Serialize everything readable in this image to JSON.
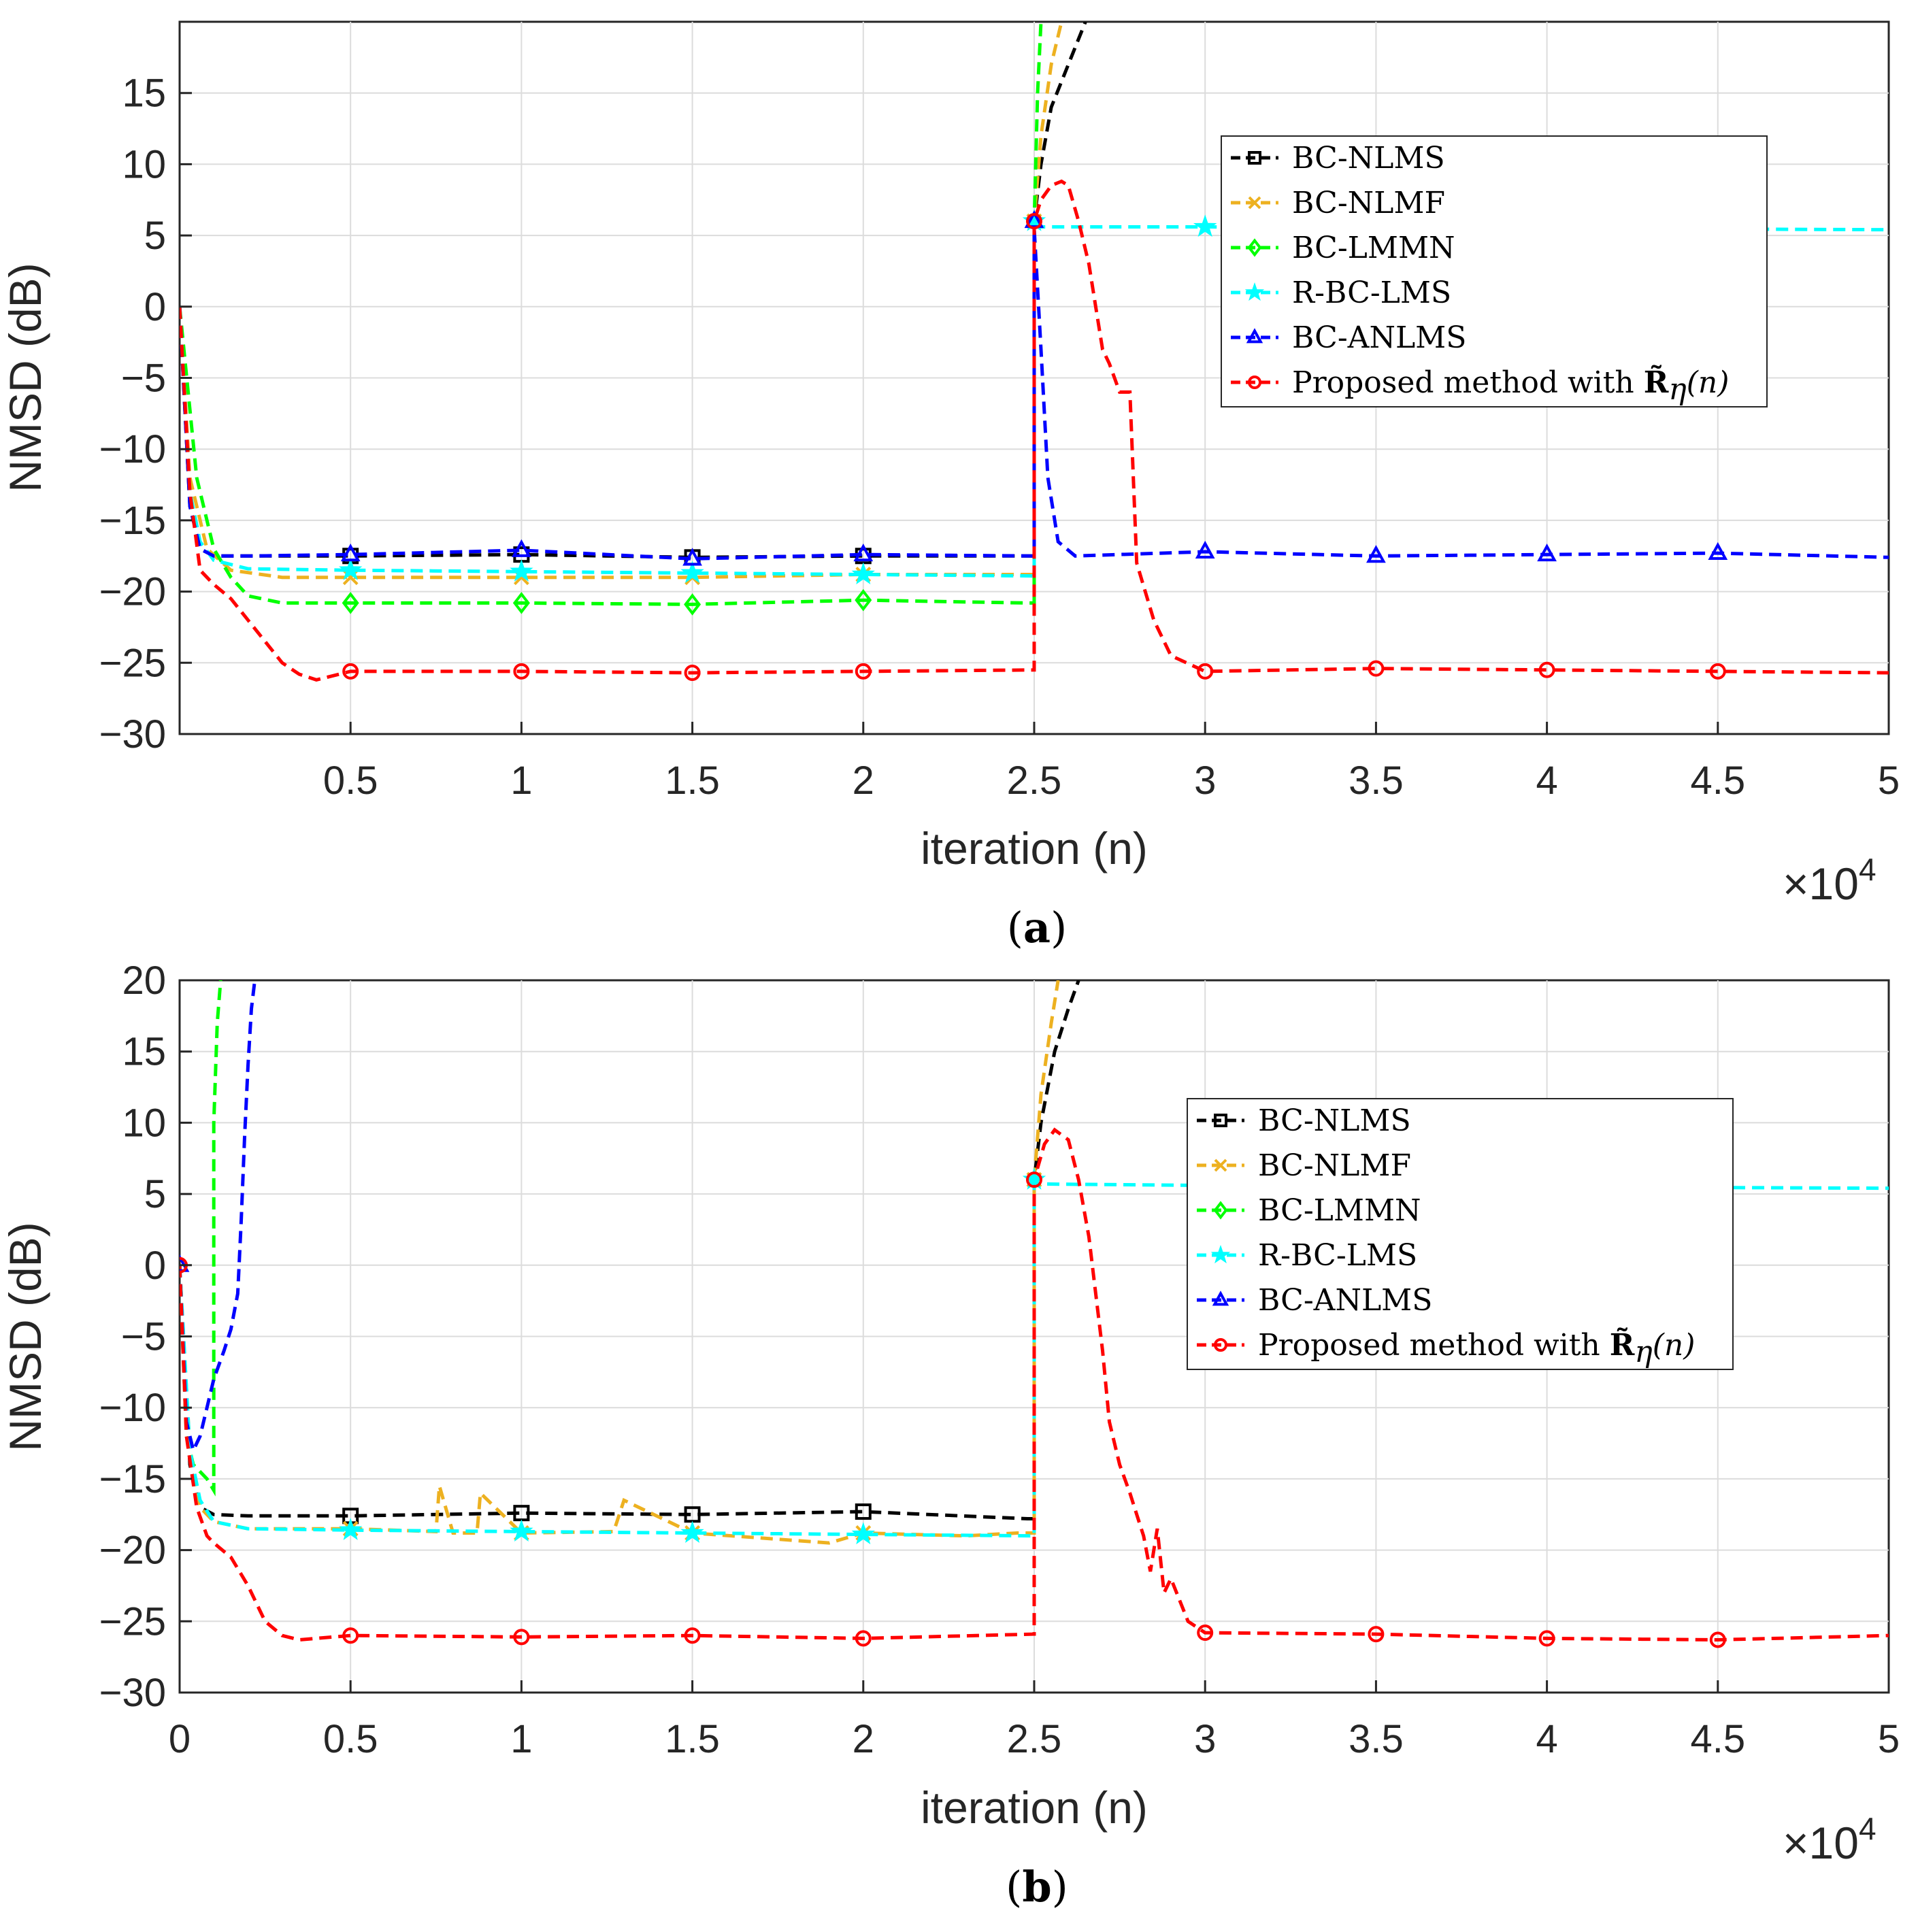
{
  "chart_data": [
    {
      "id": "a",
      "type": "line",
      "caption_letter": "a",
      "xlabel": "iteration (n)",
      "ylabel": "NMSD (dB)",
      "x_multiplier": "×10",
      "x_multiplier_exp": "4",
      "xlim": [
        0,
        5
      ],
      "ylim": [
        -30,
        20
      ],
      "xticks": [
        0.5,
        1,
        1.5,
        2,
        2.5,
        3,
        3.5,
        4,
        4.5,
        5
      ],
      "xtick_labels": [
        "0.5",
        "1",
        "1.5",
        "2",
        "2.5",
        "3",
        "3.5",
        "4",
        "4.5",
        "5"
      ],
      "yticks": [
        -30,
        -25,
        -20,
        -15,
        -10,
        -5,
        0,
        5,
        10,
        15
      ],
      "ytick_labels": [
        "−30",
        "−25",
        "−20",
        "−15",
        "−10",
        "−5",
        "0",
        "5",
        "10",
        "15"
      ],
      "grid": true,
      "legend_position": "top-right",
      "series": [
        {
          "name": "BC-NLMS",
          "color": "#000000",
          "marker": "square",
          "x": [
            0,
            0.03,
            0.06,
            0.1,
            0.2,
            0.5,
            1,
            1.5,
            2,
            2.45,
            2.5,
            2.5,
            2.52,
            2.55,
            2.6,
            2.65
          ],
          "y": [
            0,
            -14,
            -17,
            -17.5,
            -17.5,
            -17.5,
            -17.4,
            -17.6,
            -17.5,
            -17.5,
            -17.5,
            6,
            10,
            14,
            17,
            20
          ],
          "markers_x": [
            0.5,
            1,
            1.5,
            2
          ],
          "markers_y": [
            -17.5,
            -17.4,
            -17.6,
            -17.5
          ]
        },
        {
          "name": "BC-NLMF",
          "color": "#EDB120",
          "marker": "x",
          "x": [
            0,
            0.03,
            0.08,
            0.15,
            0.3,
            0.5,
            1,
            1.5,
            2,
            2.48,
            2.5,
            2.5,
            2.52,
            2.55,
            2.58
          ],
          "y": [
            0,
            -12,
            -17,
            -18.5,
            -19,
            -19,
            -19,
            -19,
            -18.8,
            -18.8,
            -18.8,
            6,
            12,
            17,
            20
          ],
          "markers_x": [
            0.5,
            1,
            1.5,
            2
          ],
          "markers_y": [
            -19,
            -19,
            -19,
            -18.8
          ]
        },
        {
          "name": "BC-LMMN",
          "color": "#00FF00",
          "marker": "diamond",
          "x": [
            0,
            0.05,
            0.1,
            0.15,
            0.2,
            0.3,
            0.5,
            1,
            1.5,
            2,
            2.48,
            2.5,
            2.5,
            2.51,
            2.52
          ],
          "y": [
            0,
            -12,
            -17,
            -19,
            -20.3,
            -20.8,
            -20.8,
            -20.8,
            -20.9,
            -20.6,
            -20.8,
            -20.8,
            6,
            15,
            20
          ],
          "markers_x": [
            0.5,
            1,
            1.5,
            2
          ],
          "markers_y": [
            -20.8,
            -20.8,
            -20.9,
            -20.6
          ]
        },
        {
          "name": "R-BC-LMS",
          "color": "#00FFFF",
          "marker": "star",
          "x": [
            0,
            0.03,
            0.06,
            0.1,
            0.2,
            0.5,
            1,
            1.5,
            2,
            2.5,
            2.5,
            3,
            4,
            5
          ],
          "y": [
            0,
            -13,
            -16.5,
            -17.8,
            -18.4,
            -18.5,
            -18.6,
            -18.7,
            -18.8,
            -18.9,
            5.6,
            5.6,
            5.5,
            5.4
          ],
          "markers_x": [
            0.5,
            1,
            1.5,
            2,
            3
          ],
          "markers_y": [
            -18.5,
            -18.6,
            -18.7,
            -18.8,
            5.6
          ]
        },
        {
          "name": "BC-ANLMS",
          "color": "#0000FF",
          "marker": "triangle",
          "x": [
            0,
            0.03,
            0.06,
            0.1,
            0.2,
            0.5,
            1,
            1.5,
            2,
            2.5,
            2.5,
            2.52,
            2.54,
            2.57,
            2.62,
            3,
            3.5,
            4,
            4.5,
            5
          ],
          "y": [
            0,
            -14,
            -17,
            -17.5,
            -17.5,
            -17.4,
            -17.1,
            -17.7,
            -17.4,
            -17.5,
            5.5,
            -3,
            -12,
            -16.5,
            -17.5,
            -17.2,
            -17.5,
            -17.4,
            -17.3,
            -17.6
          ],
          "markers_x": [
            0.5,
            1,
            1.5,
            2,
            3,
            3.5,
            4,
            4.5
          ],
          "markers_y": [
            -17.4,
            -17.1,
            -17.7,
            -17.4,
            -17.2,
            -17.5,
            -17.4,
            -17.3
          ]
        },
        {
          "name": "Proposed method with ",
          "name_math": "R̃",
          "name_sub": "η",
          "name_arg": "(n)",
          "color": "#FF0000",
          "marker": "circle",
          "x": [
            0,
            0.03,
            0.06,
            0.1,
            0.15,
            0.2,
            0.25,
            0.3,
            0.35,
            0.4,
            0.5,
            1,
            1.5,
            2,
            2.5,
            2.5,
            2.52,
            2.55,
            2.58,
            2.6,
            2.63,
            2.66,
            2.68,
            2.7,
            2.72,
            2.75,
            2.78,
            2.8,
            2.85,
            2.9,
            3,
            3.5,
            4,
            4.5,
            5
          ],
          "y": [
            0,
            -13,
            -18.5,
            -19.5,
            -20.5,
            -22,
            -23.5,
            -25,
            -25.8,
            -26.2,
            -25.6,
            -25.6,
            -25.7,
            -25.6,
            -25.5,
            6,
            7.5,
            8.5,
            8.8,
            8.5,
            6,
            3,
            0,
            -3,
            -4,
            -6,
            -6,
            -18,
            -22,
            -24.5,
            -25.6,
            -25.4,
            -25.5,
            -25.6,
            -25.7
          ],
          "markers_x": [
            0.5,
            1,
            1.5,
            2,
            3,
            3.5,
            4,
            4.5
          ],
          "markers_y": [
            -25.6,
            -25.6,
            -25.7,
            -25.6,
            -25.6,
            -25.4,
            -25.5,
            -25.6
          ]
        }
      ],
      "extra_markers": [
        {
          "x": 2.5,
          "y": 6,
          "series": [
            1,
            3,
            4,
            5
          ]
        }
      ]
    },
    {
      "id": "b",
      "type": "line",
      "caption_letter": "b",
      "xlabel": "iteration (n)",
      "ylabel": "NMSD (dB)",
      "x_multiplier": "×10",
      "x_multiplier_exp": "4",
      "xlim": [
        0,
        5
      ],
      "ylim": [
        -30,
        20
      ],
      "xticks": [
        0,
        0.5,
        1,
        1.5,
        2,
        2.5,
        3,
        3.5,
        4,
        4.5,
        5
      ],
      "xtick_labels": [
        "0",
        "0.5",
        "1",
        "1.5",
        "2",
        "2.5",
        "3",
        "3.5",
        "4",
        "4.5",
        "5"
      ],
      "yticks": [
        -30,
        -25,
        -20,
        -15,
        -10,
        -5,
        0,
        5,
        10,
        15,
        20
      ],
      "ytick_labels": [
        "−30",
        "−25",
        "−20",
        "−15",
        "−10",
        "−5",
        "0",
        "5",
        "10",
        "15",
        "20"
      ],
      "grid": true,
      "legend_position": "top-right",
      "series": [
        {
          "name": "BC-NLMS",
          "color": "#000000",
          "marker": "square",
          "x": [
            0,
            0.03,
            0.06,
            0.1,
            0.2,
            0.5,
            1,
            1.5,
            2,
            2.48,
            2.5,
            2.5,
            2.52,
            2.56,
            2.6,
            2.63
          ],
          "y": [
            0,
            -14,
            -17,
            -17.5,
            -17.6,
            -17.6,
            -17.4,
            -17.5,
            -17.3,
            -17.8,
            -17.8,
            6,
            10,
            15,
            18,
            20
          ],
          "markers_x": [
            0.5,
            1,
            1.5,
            2
          ],
          "markers_y": [
            -17.6,
            -17.4,
            -17.5,
            -17.3
          ]
        },
        {
          "name": "BC-NLMF",
          "color": "#EDB120",
          "marker": "x",
          "x": [
            0,
            0.03,
            0.06,
            0.1,
            0.2,
            0.5,
            0.75,
            0.76,
            0.8,
            0.87,
            0.88,
            1,
            1.27,
            1.3,
            1.5,
            1.9,
            2,
            2.3,
            2.45,
            2.5,
            2.5,
            2.52,
            2.55,
            2.57
          ],
          "y": [
            0,
            -13,
            -17,
            -18,
            -18.5,
            -18.5,
            -18.7,
            -15.5,
            -18.8,
            -18.8,
            -16,
            -18.8,
            -18.7,
            -16.5,
            -18.8,
            -19.5,
            -18.8,
            -19,
            -18.8,
            -18.8,
            6,
            12,
            17,
            20
          ],
          "markers_x": [
            0.5,
            1,
            1.5,
            2
          ],
          "markers_y": [
            -18.5,
            -18.8,
            -18.8,
            -18.8
          ]
        },
        {
          "name": "BC-LMMN",
          "color": "#00FF00",
          "marker": "diamond",
          "x": [
            0,
            0.02,
            0.04,
            0.06,
            0.08,
            0.1,
            0.1,
            0.11,
            0.12
          ],
          "y": [
            0,
            -12,
            -14,
            -14.5,
            -15,
            -15.8,
            10,
            17,
            20
          ],
          "markers_x": [],
          "markers_y": []
        },
        {
          "name": "R-BC-LMS",
          "color": "#00FFFF",
          "marker": "star",
          "x": [
            0,
            0.03,
            0.06,
            0.1,
            0.2,
            0.5,
            1,
            1.5,
            2,
            2.5,
            2.5,
            3,
            4,
            5
          ],
          "y": [
            0,
            -13,
            -16.5,
            -18,
            -18.5,
            -18.6,
            -18.7,
            -18.8,
            -18.9,
            -19,
            5.7,
            5.6,
            5.5,
            5.4
          ],
          "markers_x": [
            0.5,
            1,
            1.5,
            2
          ],
          "markers_y": [
            -18.6,
            -18.7,
            -18.8,
            -18.9
          ]
        },
        {
          "name": "BC-ANLMS",
          "color": "#0000FF",
          "marker": "triangle",
          "x": [
            0,
            0.02,
            0.04,
            0.06,
            0.08,
            0.1,
            0.13,
            0.15,
            0.17,
            0.18,
            0.19,
            0.2,
            0.21,
            0.22
          ],
          "y": [
            0,
            -11,
            -13,
            -12,
            -10,
            -8,
            -6,
            -4.5,
            -2,
            3,
            9,
            14,
            18,
            20
          ],
          "markers_x": [],
          "markers_y": []
        },
        {
          "name": "Proposed method with ",
          "name_math": "R̃",
          "name_sub": "η",
          "name_arg": "(n)",
          "color": "#FF0000",
          "marker": "circle",
          "x": [
            0,
            0.02,
            0.05,
            0.08,
            0.1,
            0.15,
            0.2,
            0.25,
            0.3,
            0.35,
            0.4,
            0.5,
            1,
            1.5,
            2,
            2.5,
            2.5,
            2.53,
            2.56,
            2.6,
            2.63,
            2.66,
            2.7,
            2.72,
            2.75,
            2.78,
            2.8,
            2.82,
            2.84,
            2.86,
            2.88,
            2.9,
            2.95,
            3,
            3.5,
            4,
            4.5,
            5
          ],
          "y": [
            0,
            -12,
            -17,
            -19,
            -19.5,
            -20.5,
            -22.5,
            -25,
            -26,
            -26.3,
            -26.2,
            -26,
            -26.1,
            -26,
            -26.2,
            -25.9,
            6,
            8.5,
            9.5,
            8.8,
            6,
            2,
            -6,
            -11,
            -14,
            -16,
            -17.5,
            -19,
            -21.5,
            -18.5,
            -23,
            -22,
            -25,
            -25.8,
            -25.9,
            -26.2,
            -26.3,
            -26
          ],
          "markers_x": [
            0.5,
            1,
            1.5,
            2,
            3,
            3.5,
            4,
            4.5
          ],
          "markers_y": [
            -26,
            -26.1,
            -26,
            -26.2,
            -25.8,
            -25.9,
            -26.2,
            -26.3
          ]
        }
      ],
      "extra_markers": [
        {
          "x": 2.5,
          "y": 6,
          "series": [
            1,
            3,
            5
          ]
        },
        {
          "x": 0,
          "y": 0,
          "series": [
            4,
            5
          ]
        }
      ]
    }
  ]
}
